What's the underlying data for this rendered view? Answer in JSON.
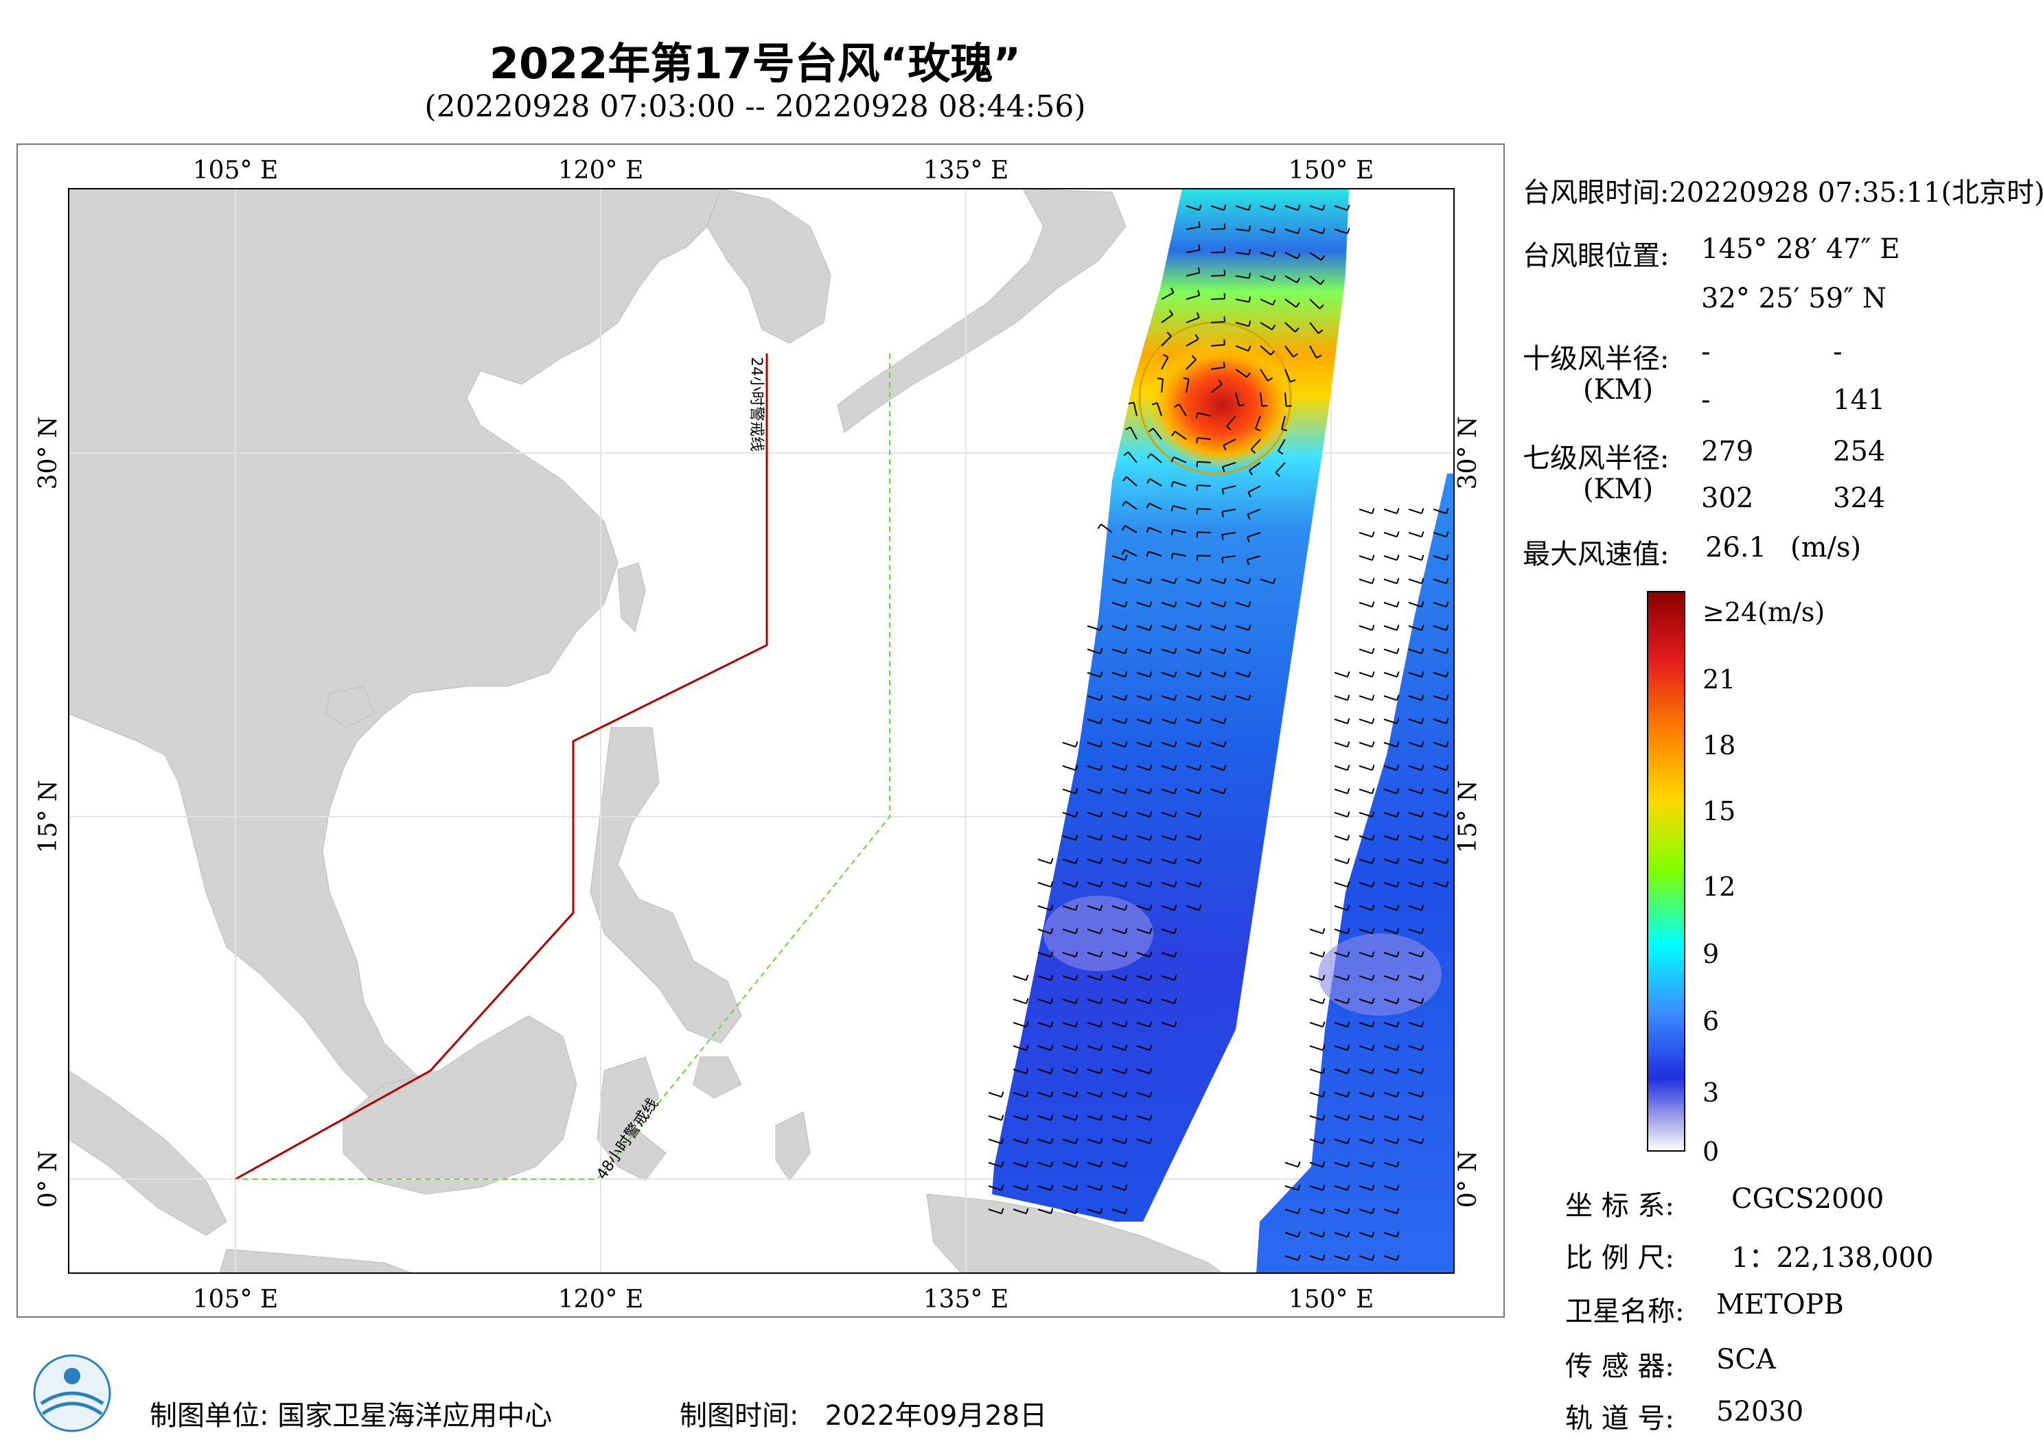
{
  "title": "2022年第17号台风“玫瑰”",
  "subtitle": "(20220928 07:03:00 -- 20220928 08:44:56)",
  "map": {
    "lon_ticks": [
      "105° E",
      "120° E",
      "135° E",
      "150° E"
    ],
    "lat_ticks": [
      "30° N",
      "15° N",
      "0° N"
    ],
    "warning_24h_label": "24小时警戒线",
    "warning_48h_label": "48小时警戒线"
  },
  "info": {
    "eye_time_label": "台风眼时间:",
    "eye_time_value": "20220928 07:35:11(北京时)",
    "eye_pos_label": "台风眼位置:",
    "eye_lon": "145° 28′ 47″ E",
    "eye_lat": "32° 25′ 59″ N",
    "r10_label": "十级风半径:",
    "km_label": "(KM)",
    "r10_values": [
      "-",
      "-",
      "-",
      "141"
    ],
    "r7_label": "七级风半径:",
    "r7_values": [
      "279",
      "254",
      "302",
      "324"
    ],
    "max_wind_label": "最大风速值:",
    "max_wind_value": "26.1",
    "max_wind_unit": "(m/s)"
  },
  "colorbar": {
    "labels": [
      "≥24(m/s)",
      "21",
      "18",
      "15",
      "12",
      "9",
      "6",
      "3",
      "0"
    ],
    "colors": [
      "#8b0000",
      "#e31a1c",
      "#ff7f00",
      "#ffd700",
      "#7fff00",
      "#00ffff",
      "#3a8fff",
      "#1f2fe0",
      "#ffffff"
    ]
  },
  "meta": {
    "crs_label": "坐 标 系:",
    "crs_value": "CGCS2000",
    "scale_label": "比 例 尺:",
    "scale_value": "1：22,138,000",
    "satellite_label": "卫星名称:",
    "satellite_value": "METOPB",
    "sensor_label": "传 感 器:",
    "sensor_value": "SCA",
    "orbit_label": "轨 道 号:",
    "orbit_value": "52030"
  },
  "footer": {
    "org_label": "制图单位:",
    "org_value": "国家卫星海洋应用中心",
    "date_label": "制图时间:",
    "date_value": "2022年09月28日"
  }
}
